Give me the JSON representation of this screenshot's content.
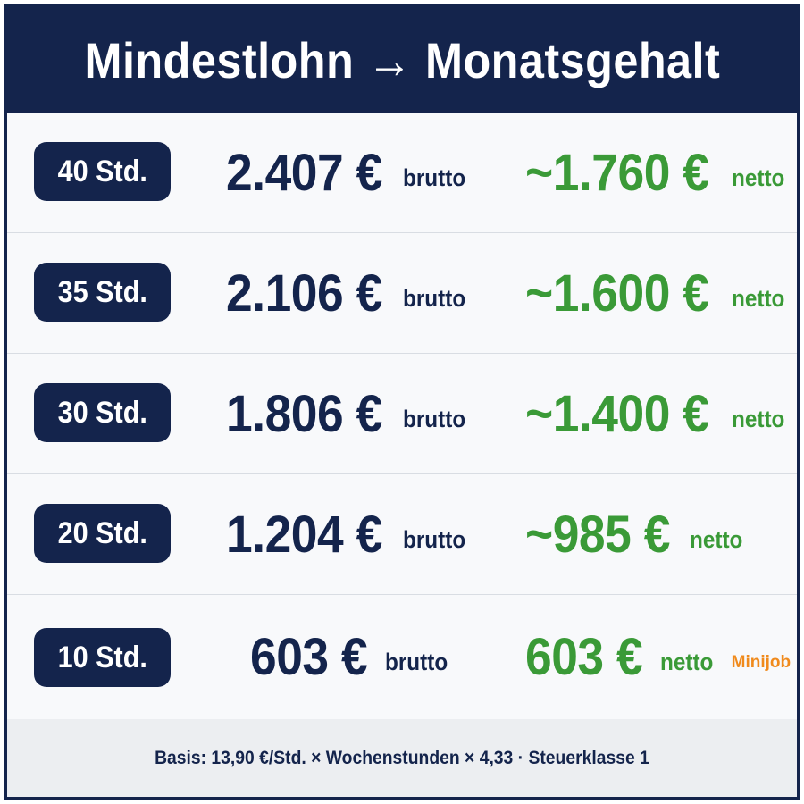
{
  "title": "Mindestlohn → Monatsgehalt",
  "rows": [
    {
      "hours": "40 Std.",
      "gross": "2.407 €",
      "gross_suffix": "brutto",
      "net": "~1.760 €",
      "net_suffix": "netto",
      "badge": ""
    },
    {
      "hours": "35 Std.",
      "gross": "2.106 €",
      "gross_suffix": "brutto",
      "net": "~1.600 €",
      "net_suffix": "netto",
      "badge": ""
    },
    {
      "hours": "30 Std.",
      "gross": "1.806 €",
      "gross_suffix": "brutto",
      "net": "~1.400 €",
      "net_suffix": "netto",
      "badge": ""
    },
    {
      "hours": "20 Std.",
      "gross": "1.204 €",
      "gross_suffix": "brutto",
      "net": "~985 €",
      "net_suffix": "netto",
      "badge": ""
    },
    {
      "hours": "10 Std.",
      "gross": "603 €",
      "gross_suffix": "brutto",
      "net": "603 €",
      "net_suffix": "netto",
      "badge": "Minijob"
    }
  ],
  "footer": "Basis: 13,90 €/Std. × Wochenstunden × 4,33 · Steuerklasse 1",
  "colors": {
    "navy": "#14244c",
    "green": "#3a9a37",
    "orange": "#f08a1c",
    "background": "#f6f7f9"
  }
}
